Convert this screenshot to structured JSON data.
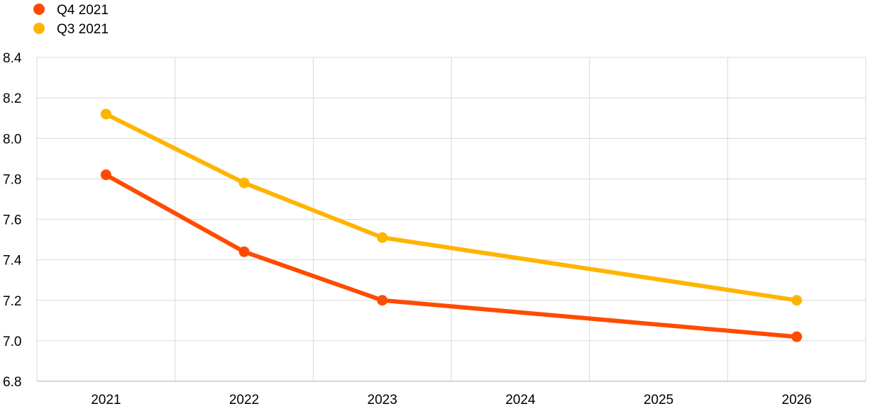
{
  "chart_data": {
    "type": "line",
    "title": "",
    "xlabel": "",
    "ylabel": "",
    "x": [
      2021,
      2022,
      2023,
      2024,
      2025,
      2026
    ],
    "x_tick_labels": [
      "2021",
      "2022",
      "2023",
      "2024",
      "2025",
      "2026"
    ],
    "ylim": [
      6.8,
      8.4
    ],
    "y_ticks": [
      6.8,
      7.0,
      7.2,
      7.4,
      7.6,
      7.8,
      8.0,
      8.2,
      8.4
    ],
    "y_tick_labels": [
      "6.8",
      "7.0",
      "7.2",
      "7.4",
      "7.6",
      "7.8",
      "8.0",
      "8.2",
      "8.4"
    ],
    "grid": true,
    "legend_position": "top-left",
    "series": [
      {
        "name": "Q4 2021",
        "color": "#ff4b00",
        "points": [
          [
            2021,
            7.82
          ],
          [
            2022,
            7.44
          ],
          [
            2023,
            7.2
          ],
          [
            2026,
            7.02
          ]
        ]
      },
      {
        "name": "Q3 2021",
        "color": "#ffb400",
        "points": [
          [
            2021,
            8.12
          ],
          [
            2022,
            7.78
          ],
          [
            2023,
            7.51
          ],
          [
            2026,
            7.2
          ]
        ]
      }
    ]
  }
}
